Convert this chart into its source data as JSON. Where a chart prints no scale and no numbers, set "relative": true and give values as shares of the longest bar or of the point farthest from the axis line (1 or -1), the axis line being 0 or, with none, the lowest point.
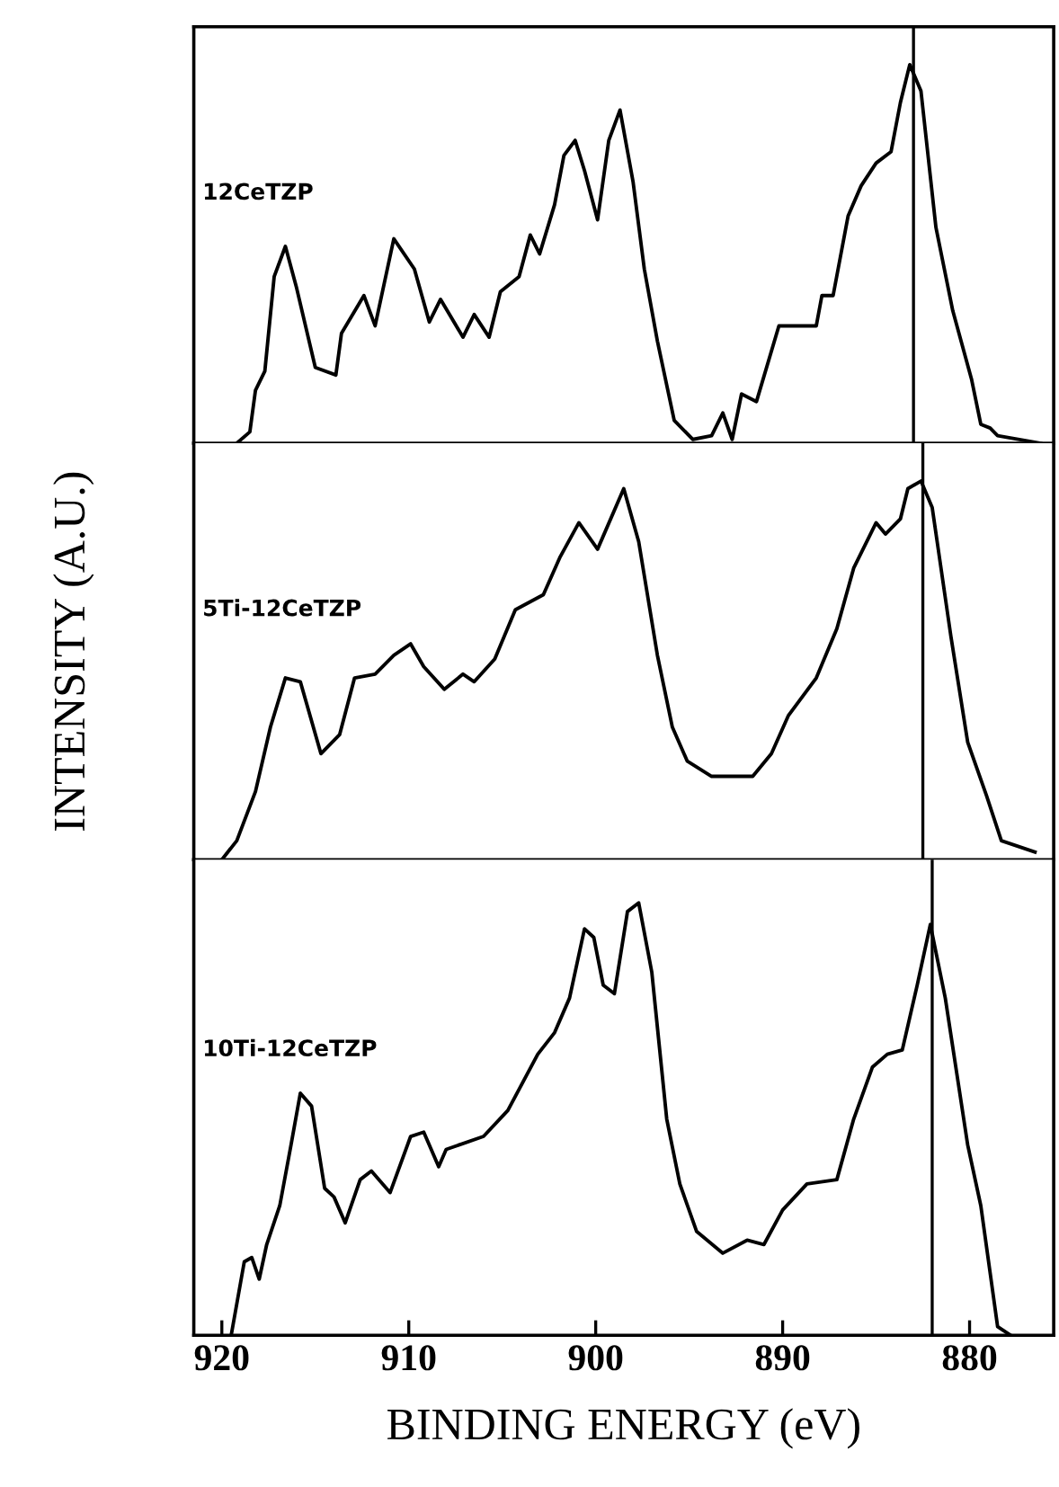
{
  "chart_data": [
    {
      "type": "line",
      "relative": true,
      "xlim": [
        921.5,
        875.5
      ],
      "tick_labels": false,
      "ref_lines": [
        {
          "axis": "x",
          "value": 883,
          "color": "#000000"
        }
      ],
      "x": [
        919.2,
        918.5,
        918.2,
        917.7,
        917.2,
        916.6,
        916.0,
        915.0,
        913.9,
        913.6,
        912.4,
        911.8,
        910.8,
        909.7,
        908.9,
        908.3,
        907.1,
        906.5,
        905.7,
        905.1,
        904.1,
        903.5,
        903.0,
        902.2,
        901.7,
        901.1,
        900.6,
        899.9,
        899.3,
        898.7,
        898.0,
        897.4,
        896.7,
        895.8,
        894.8,
        893.8,
        893.2,
        892.7,
        892.2,
        891.4,
        890.2,
        888.2,
        887.9,
        887.3,
        886.5,
        885.8,
        885.0,
        884.2,
        883.7,
        883.2,
        882.6,
        881.8,
        880.9,
        879.9,
        879.4,
        878.9,
        878.5,
        876.2
      ],
      "series": [
        {
          "name": "12CeTZP",
          "color": "#000000",
          "values": [
            0,
            0.03,
            0.14,
            0.19,
            0.44,
            0.52,
            0.41,
            0.2,
            0.18,
            0.29,
            0.39,
            0.31,
            0.54,
            0.46,
            0.32,
            0.38,
            0.28,
            0.34,
            0.28,
            0.4,
            0.44,
            0.55,
            0.5,
            0.63,
            0.76,
            0.8,
            0.72,
            0.59,
            0.8,
            0.88,
            0.69,
            0.46,
            0.27,
            0.06,
            0.01,
            0.02,
            0.08,
            0.01,
            0.13,
            0.11,
            0.31,
            0.31,
            0.39,
            0.39,
            0.6,
            0.68,
            0.74,
            0.77,
            0.9,
            1.0,
            0.93,
            0.57,
            0.35,
            0.17,
            0.05,
            0.04,
            0.02,
            0
          ]
        }
      ]
    },
    {
      "type": "line",
      "relative": true,
      "xlim": [
        921.5,
        875.5
      ],
      "tick_labels": false,
      "ylabel": "INTENSITY (A.U.)",
      "ref_lines": [
        {
          "axis": "x",
          "value": 882.5,
          "color": "#000000"
        }
      ],
      "x": [
        920.0,
        919.2,
        918.2,
        917.4,
        916.6,
        915.8,
        914.7,
        913.7,
        912.9,
        911.8,
        910.8,
        909.9,
        909.2,
        908.1,
        907.1,
        906.5,
        905.4,
        904.3,
        902.8,
        901.9,
        900.9,
        899.9,
        898.5,
        897.7,
        896.7,
        895.9,
        895.1,
        893.8,
        891.6,
        890.6,
        889.7,
        888.2,
        887.1,
        886.2,
        885.0,
        884.5,
        883.7,
        883.3,
        882.6,
        882.0,
        881.0,
        880.1,
        879.1,
        878.3,
        876.5
      ],
      "series": [
        {
          "name": "5Ti-12CeTZP",
          "color": "#000000",
          "values": [
            0,
            0.05,
            0.18,
            0.35,
            0.48,
            0.47,
            0.28,
            0.33,
            0.48,
            0.49,
            0.54,
            0.57,
            0.51,
            0.45,
            0.49,
            0.47,
            0.53,
            0.66,
            0.7,
            0.8,
            0.89,
            0.82,
            0.98,
            0.84,
            0.54,
            0.35,
            0.26,
            0.22,
            0.22,
            0.28,
            0.38,
            0.48,
            0.61,
            0.77,
            0.89,
            0.86,
            0.9,
            0.98,
            1.0,
            0.93,
            0.59,
            0.31,
            0.17,
            0.05,
            0.02
          ]
        }
      ]
    },
    {
      "type": "line",
      "relative": true,
      "xlim": [
        921.5,
        875.5
      ],
      "xticks": [
        920,
        910,
        900,
        890,
        880
      ],
      "tick_labels": "x",
      "xlabel": "BINDING ENERGY (eV)",
      "ref_lines": [
        {
          "axis": "x",
          "value": 882,
          "color": "#000000"
        }
      ],
      "x": [
        919.5,
        918.8,
        918.4,
        918.0,
        917.6,
        916.9,
        916.3,
        915.8,
        915.2,
        914.5,
        914.0,
        913.4,
        912.6,
        912.0,
        911.0,
        909.9,
        909.2,
        908.4,
        908.0,
        906.0,
        904.7,
        903.1,
        902.2,
        901.4,
        900.6,
        900.1,
        899.6,
        899.0,
        898.3,
        897.7,
        897.0,
        896.2,
        895.5,
        894.6,
        893.2,
        891.9,
        891.0,
        890.0,
        888.7,
        887.1,
        886.2,
        885.2,
        884.4,
        883.6,
        882.8,
        882.1,
        881.3,
        880.1,
        879.4,
        878.5,
        877.8
      ],
      "series": [
        {
          "name": "10Ti-12CeTZP",
          "color": "#000000",
          "values": [
            0,
            0.17,
            0.18,
            0.13,
            0.21,
            0.3,
            0.44,
            0.56,
            0.53,
            0.34,
            0.32,
            0.26,
            0.36,
            0.38,
            0.33,
            0.46,
            0.47,
            0.39,
            0.43,
            0.46,
            0.52,
            0.65,
            0.7,
            0.78,
            0.94,
            0.92,
            0.81,
            0.79,
            0.98,
            1.0,
            0.84,
            0.5,
            0.35,
            0.24,
            0.19,
            0.22,
            0.21,
            0.29,
            0.35,
            0.36,
            0.5,
            0.62,
            0.65,
            0.66,
            0.81,
            0.95,
            0.78,
            0.44,
            0.3,
            0.02,
            0
          ]
        }
      ]
    }
  ]
}
